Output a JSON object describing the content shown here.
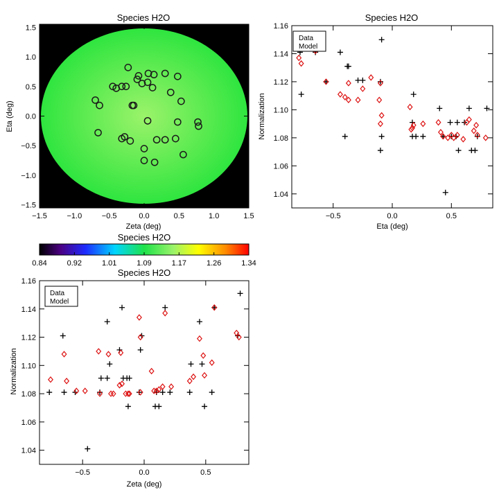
{
  "colors": {
    "data": "#000000",
    "model": "#dd1111",
    "map_bg": "#000000",
    "disc_center": "#9bf36a",
    "disc_edge": "#2fe53f",
    "marker_edge": "#1a1a1a"
  },
  "chart_data": [
    {
      "type": "scatter",
      "title": "Species H2O",
      "xlabel": "Zeta (deg)",
      "ylabel": "Eta (deg)",
      "xlim": [
        -1.5,
        1.5
      ],
      "ylim": [
        -1.55,
        1.55
      ],
      "xticks": [
        -1.5,
        -1.0,
        -0.5,
        0.0,
        0.5,
        1.0,
        1.5
      ],
      "xtick_labels": [
        "−1.5",
        "−1.0",
        "−0.5",
        "0.0",
        "0.5",
        "1.0",
        "1.5"
      ],
      "yticks": [
        -1.5,
        -1.0,
        -0.5,
        0.0,
        0.5,
        1.0,
        1.5
      ],
      "ytick_labels": [
        "−1.5",
        "−1.0",
        "−0.5",
        "0.0",
        "0.5",
        "1.0",
        "1.5"
      ],
      "disc_radius": 1.48,
      "points": [
        {
          "x": -0.45,
          "y": 0.5
        },
        {
          "x": -0.4,
          "y": 0.47
        },
        {
          "x": -0.32,
          "y": 0.5
        },
        {
          "x": -0.26,
          "y": 0.5
        },
        {
          "x": -0.23,
          "y": 0.82
        },
        {
          "x": -0.17,
          "y": 0.18
        },
        {
          "x": -0.15,
          "y": 0.18
        },
        {
          "x": -0.08,
          "y": 0.68
        },
        {
          "x": -0.1,
          "y": 0.62
        },
        {
          "x": -0.03,
          "y": 0.55
        },
        {
          "x": 0.06,
          "y": 0.72
        },
        {
          "x": 0.05,
          "y": 0.57
        },
        {
          "x": 0.12,
          "y": 0.48
        },
        {
          "x": 0.14,
          "y": 0.7
        },
        {
          "x": 0.3,
          "y": 0.72
        },
        {
          "x": 0.38,
          "y": 0.4
        },
        {
          "x": 0.48,
          "y": 0.67
        },
        {
          "x": 0.53,
          "y": 0.25
        },
        {
          "x": -0.7,
          "y": 0.27
        },
        {
          "x": -0.64,
          "y": 0.18
        },
        {
          "x": -0.66,
          "y": -0.28
        },
        {
          "x": -0.32,
          "y": -0.38
        },
        {
          "x": -0.28,
          "y": -0.35
        },
        {
          "x": -0.2,
          "y": -0.42
        },
        {
          "x": 0.0,
          "y": -0.55
        },
        {
          "x": 0.0,
          "y": -0.75
        },
        {
          "x": 0.05,
          "y": -0.08
        },
        {
          "x": 0.15,
          "y": -0.78
        },
        {
          "x": 0.18,
          "y": -0.4
        },
        {
          "x": 0.3,
          "y": -0.4
        },
        {
          "x": 0.45,
          "y": -0.38
        },
        {
          "x": 0.48,
          "y": -0.1
        },
        {
          "x": 0.56,
          "y": -0.65
        },
        {
          "x": 0.77,
          "y": -0.1
        },
        {
          "x": 0.78,
          "y": -0.17
        }
      ]
    },
    {
      "type": "scatter",
      "title": "Species H2O",
      "xlabel": "Eta (deg)",
      "ylabel": "Normalization",
      "xlim": [
        -0.85,
        0.85
      ],
      "ylim": [
        1.03,
        1.16
      ],
      "xticks": [
        -0.5,
        0.0,
        0.5
      ],
      "xtick_labels": [
        "−0.5",
        "0.0",
        "0.5"
      ],
      "yticks": [
        1.04,
        1.06,
        1.08,
        1.1,
        1.12,
        1.14,
        1.16
      ],
      "ytick_labels": [
        "1.04",
        "1.06",
        "1.08",
        "1.10",
        "1.12",
        "1.14",
        "1.16"
      ],
      "legend": [
        "Data",
        "Model"
      ],
      "series": [
        {
          "name": "Data",
          "marker": "plus",
          "points": [
            [
              -0.78,
              1.141
            ],
            [
              -0.77,
              1.111
            ],
            [
              -0.65,
              1.141
            ],
            [
              -0.56,
              1.12
            ],
            [
              -0.44,
              1.141
            ],
            [
              -0.4,
              1.081
            ],
            [
              -0.38,
              1.131
            ],
            [
              -0.37,
              1.131
            ],
            [
              -0.29,
              1.121
            ],
            [
              -0.25,
              1.121
            ],
            [
              -0.09,
              1.15
            ],
            [
              -0.1,
              1.12
            ],
            [
              -0.1,
              1.071
            ],
            [
              -0.09,
              1.081
            ],
            [
              0.18,
              1.111
            ],
            [
              0.17,
              1.091
            ],
            [
              0.17,
              1.081
            ],
            [
              0.2,
              1.081
            ],
            [
              0.26,
              1.081
            ],
            [
              0.4,
              1.101
            ],
            [
              0.43,
              1.081
            ],
            [
              0.45,
              1.041
            ],
            [
              0.49,
              1.091
            ],
            [
              0.5,
              1.081
            ],
            [
              0.54,
              1.081
            ],
            [
              0.55,
              1.091
            ],
            [
              0.56,
              1.071
            ],
            [
              0.61,
              1.091
            ],
            [
              0.65,
              1.101
            ],
            [
              0.67,
              1.071
            ],
            [
              0.7,
              1.071
            ],
            [
              0.72,
              1.081
            ],
            [
              0.8,
              1.101
            ]
          ]
        },
        {
          "name": "Model",
          "marker": "diamond",
          "points": [
            [
              -0.79,
              1.137
            ],
            [
              -0.77,
              1.133
            ],
            [
              -0.65,
              1.142
            ],
            [
              -0.56,
              1.12
            ],
            [
              -0.44,
              1.111
            ],
            [
              -0.4,
              1.109
            ],
            [
              -0.37,
              1.107
            ],
            [
              -0.37,
              1.119
            ],
            [
              -0.29,
              1.107
            ],
            [
              -0.25,
              1.115
            ],
            [
              -0.18,
              1.123
            ],
            [
              -0.1,
              1.119
            ],
            [
              -0.11,
              1.107
            ],
            [
              -0.09,
              1.096
            ],
            [
              -0.1,
              1.09
            ],
            [
              0.15,
              1.102
            ],
            [
              0.17,
              1.087
            ],
            [
              0.16,
              1.086
            ],
            [
              0.18,
              1.089
            ],
            [
              0.26,
              1.09
            ],
            [
              0.39,
              1.091
            ],
            [
              0.41,
              1.084
            ],
            [
              0.43,
              1.081
            ],
            [
              0.47,
              1.08
            ],
            [
              0.5,
              1.082
            ],
            [
              0.52,
              1.08
            ],
            [
              0.55,
              1.082
            ],
            [
              0.6,
              1.079
            ],
            [
              0.63,
              1.091
            ],
            [
              0.65,
              1.093
            ],
            [
              0.69,
              1.085
            ],
            [
              0.71,
              1.089
            ],
            [
              0.72,
              1.082
            ],
            [
              0.79,
              1.08
            ]
          ]
        }
      ]
    },
    {
      "type": "colorbar",
      "title": "Species H2O",
      "range": [
        0.84,
        1.34
      ],
      "tick_labels": [
        "0.84",
        "0.92",
        "1.01",
        "1.09",
        "1.17",
        "1.26",
        "1.34"
      ]
    },
    {
      "type": "scatter",
      "title": "Species H2O",
      "xlabel": "Zeta (deg)",
      "ylabel": "Normalization",
      "xlim": [
        -0.85,
        0.85
      ],
      "ylim": [
        1.03,
        1.16
      ],
      "xticks": [
        -0.5,
        0.0,
        0.5
      ],
      "xtick_labels": [
        "−0.5",
        "0.0",
        "0.5"
      ],
      "yticks": [
        1.04,
        1.06,
        1.08,
        1.1,
        1.12,
        1.14,
        1.16
      ],
      "ytick_labels": [
        "1.04",
        "1.06",
        "1.08",
        "1.10",
        "1.12",
        "1.14",
        "1.16"
      ],
      "legend": [
        "Data",
        "Model"
      ],
      "series": [
        {
          "name": "Data",
          "marker": "plus",
          "points": [
            [
              -0.77,
              1.081
            ],
            [
              -0.66,
              1.121
            ],
            [
              -0.65,
              1.081
            ],
            [
              -0.56,
              1.081
            ],
            [
              -0.46,
              1.041
            ],
            [
              -0.35,
              1.091
            ],
            [
              -0.36,
              1.081
            ],
            [
              -0.3,
              1.131
            ],
            [
              -0.28,
              1.101
            ],
            [
              -0.3,
              1.091
            ],
            [
              -0.2,
              1.111
            ],
            [
              -0.18,
              1.141
            ],
            [
              -0.17,
              1.091
            ],
            [
              -0.14,
              1.091
            ],
            [
              -0.12,
              1.091
            ],
            [
              -0.13,
              1.071
            ],
            [
              -0.04,
              1.081
            ],
            [
              -0.03,
              1.111
            ],
            [
              -0.02,
              1.121
            ],
            [
              0.09,
              1.071
            ],
            [
              0.1,
              1.081
            ],
            [
              0.12,
              1.071
            ],
            [
              0.15,
              1.081
            ],
            [
              0.17,
              1.141
            ],
            [
              0.21,
              1.081
            ],
            [
              0.37,
              1.081
            ],
            [
              0.38,
              1.101
            ],
            [
              0.45,
              1.131
            ],
            [
              0.47,
              1.101
            ],
            [
              0.49,
              1.071
            ],
            [
              0.55,
              1.081
            ],
            [
              0.57,
              1.141
            ],
            [
              0.78,
              1.151
            ],
            [
              0.76,
              1.121
            ]
          ]
        },
        {
          "name": "Model",
          "marker": "diamond",
          "points": [
            [
              -0.76,
              1.09
            ],
            [
              -0.65,
              1.108
            ],
            [
              -0.63,
              1.089
            ],
            [
              -0.55,
              1.082
            ],
            [
              -0.48,
              1.082
            ],
            [
              -0.37,
              1.11
            ],
            [
              -0.36,
              1.08
            ],
            [
              -0.29,
              1.108
            ],
            [
              -0.27,
              1.08
            ],
            [
              -0.25,
              1.08
            ],
            [
              -0.2,
              1.086
            ],
            [
              -0.19,
              1.109
            ],
            [
              -0.18,
              1.087
            ],
            [
              -0.15,
              1.08
            ],
            [
              -0.13,
              1.08
            ],
            [
              -0.12,
              1.08
            ],
            [
              -0.04,
              1.134
            ],
            [
              -0.03,
              1.12
            ],
            [
              -0.03,
              1.081
            ],
            [
              0.06,
              1.096
            ],
            [
              0.08,
              1.082
            ],
            [
              0.1,
              1.082
            ],
            [
              0.12,
              1.083
            ],
            [
              0.15,
              1.085
            ],
            [
              0.17,
              1.137
            ],
            [
              0.22,
              1.085
            ],
            [
              0.37,
              1.089
            ],
            [
              0.4,
              1.092
            ],
            [
              0.45,
              1.119
            ],
            [
              0.48,
              1.107
            ],
            [
              0.49,
              1.093
            ],
            [
              0.55,
              1.102
            ],
            [
              0.57,
              1.141
            ],
            [
              0.75,
              1.123
            ],
            [
              0.77,
              1.12
            ]
          ]
        }
      ]
    }
  ]
}
